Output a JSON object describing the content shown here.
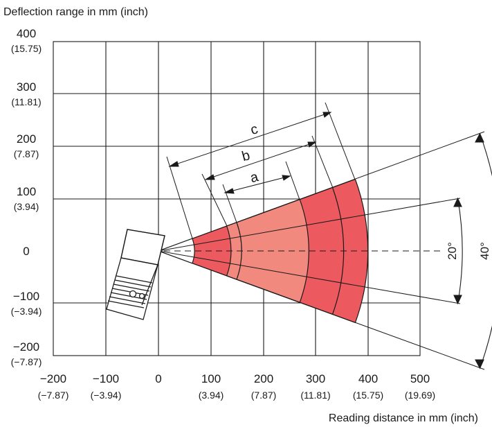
{
  "figure": {
    "y_axis_title": "Deflection range in mm (inch)",
    "x_axis_title": "Reading distance in mm (inch)",
    "y_ticks": [
      {
        "mm": "400",
        "inch": "(15.75)"
      },
      {
        "mm": "300",
        "inch": "(11.81)"
      },
      {
        "mm": "200",
        "inch": "(7.87)"
      },
      {
        "mm": "100",
        "inch": "(3.94)"
      },
      {
        "mm": "0",
        "inch": ""
      },
      {
        "mm": "−100",
        "inch": "(−3.94)"
      },
      {
        "mm": "−200",
        "inch": "(−7.87)"
      }
    ],
    "x_ticks": [
      {
        "mm": "−200",
        "inch": "(−7.87)"
      },
      {
        "mm": "−100",
        "inch": "(−3.94)"
      },
      {
        "mm": "0",
        "inch": ""
      },
      {
        "mm": "100",
        "inch": "(3.94)"
      },
      {
        "mm": "200",
        "inch": "(7.87)"
      },
      {
        "mm": "300",
        "inch": "(11.81)"
      },
      {
        "mm": "400",
        "inch": "(15.75)"
      },
      {
        "mm": "500",
        "inch": "(19.69)"
      }
    ],
    "range_labels": {
      "a": "a",
      "b": "b",
      "c": "c"
    },
    "angle_labels": {
      "inner": "20°",
      "outer": "40°"
    },
    "colors": {
      "zone_inner": "#e8414a",
      "zone_middle": "#f08a80",
      "zone_outer": "#ec5a5f",
      "grid": "#1a1a1a"
    }
  }
}
